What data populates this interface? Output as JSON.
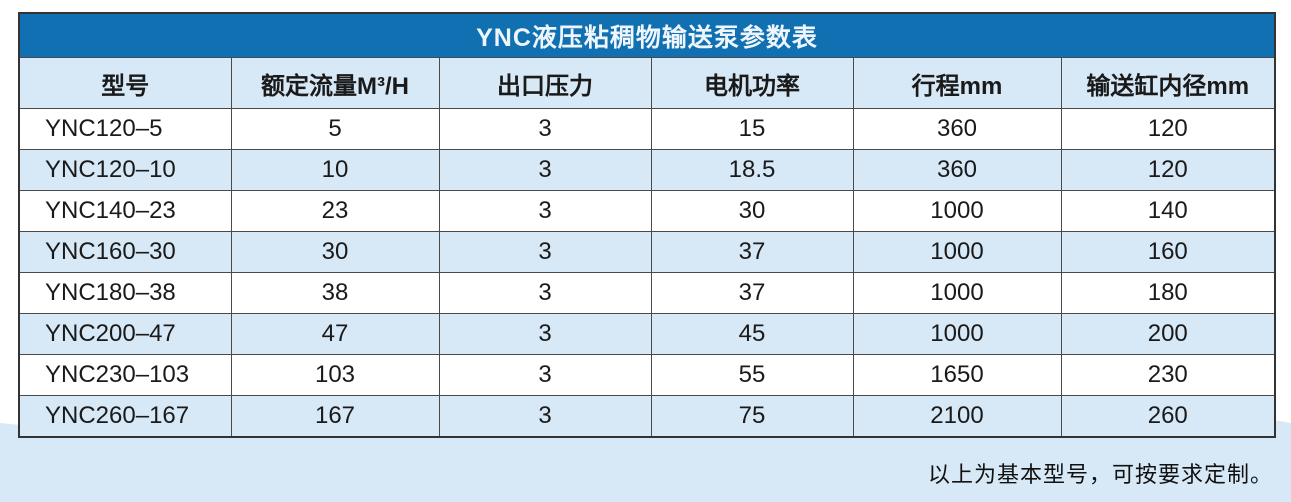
{
  "colors": {
    "title_bar_bg": "#1070b2",
    "title_text": "#eef6fc",
    "light_blue": "#d7e8f6",
    "band": "#d7e9f6",
    "grid_line": "#4a4a4a",
    "body_text": "#1a1a1a"
  },
  "table": {
    "title": "YNC液压粘稠物输送泵参数表",
    "columns": [
      "型号",
      "额定流量M³/H",
      "出口压力",
      "电机功率",
      "行程mm",
      "输送缸内径mm"
    ],
    "rows": [
      [
        "YNC120–5",
        "5",
        "3",
        "15",
        "360",
        "120"
      ],
      [
        "YNC120–10",
        "10",
        "3",
        "18.5",
        "360",
        "120"
      ],
      [
        "YNC140–23",
        "23",
        "3",
        "30",
        "1000",
        "140"
      ],
      [
        "YNC160–30",
        "30",
        "3",
        "37",
        "1000",
        "160"
      ],
      [
        "YNC180–38",
        "38",
        "3",
        "37",
        "1000",
        "180"
      ],
      [
        "YNC200–47",
        "47",
        "3",
        "45",
        "1000",
        "200"
      ],
      [
        "YNC230–103",
        "103",
        "3",
        "55",
        "1650",
        "230"
      ],
      [
        "YNC260–167",
        "167",
        "3",
        "75",
        "2100",
        "260"
      ]
    ]
  },
  "footnote": "以上为基本型号，可按要求定制。"
}
